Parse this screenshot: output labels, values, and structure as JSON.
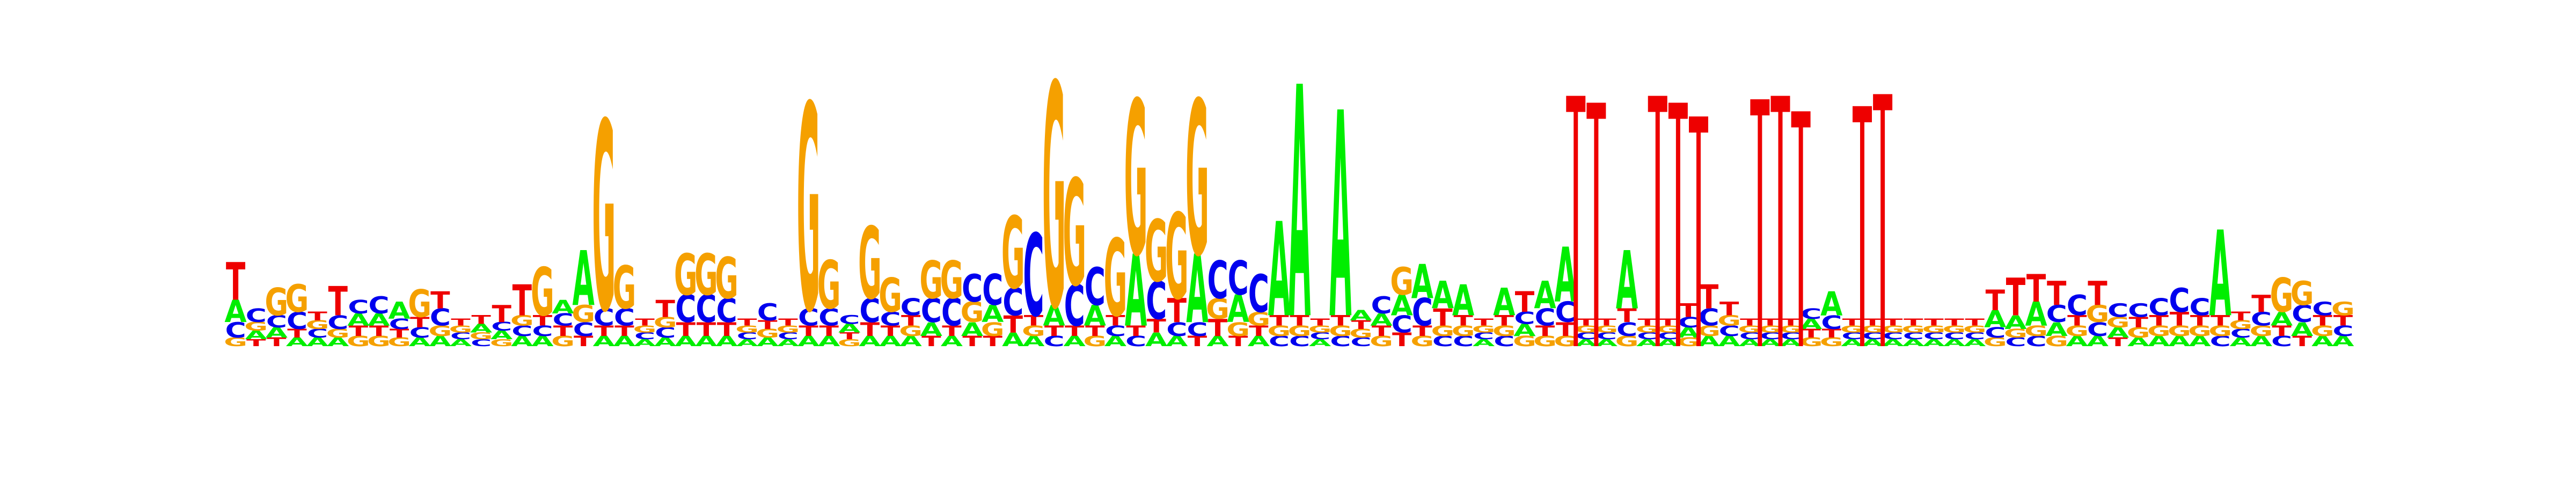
{
  "chart_data": {
    "type": "sequence-logo",
    "alphabet": [
      "A",
      "C",
      "G",
      "T"
    ],
    "colors": {
      "A": "#00ee00",
      "C": "#0000ee",
      "G": "#f5a000",
      "T": "#ee0000"
    },
    "ylim": [
      0,
      2
    ],
    "grid": false,
    "legend": "none",
    "positions": [
      {
        "A": 0.13,
        "C": 0.09,
        "G": 0.05,
        "T": 0.22
      },
      {
        "A": 0.05,
        "C": 0.08,
        "G": 0.05,
        "T": 0.04
      },
      {
        "A": 0.06,
        "C": 0.07,
        "G": 0.16,
        "T": 0.05
      },
      {
        "A": 0.05,
        "C": 0.1,
        "G": 0.16,
        "T": 0.05
      },
      {
        "A": 0.05,
        "C": 0.05,
        "G": 0.05,
        "T": 0.05
      },
      {
        "A": 0.05,
        "C": 0.08,
        "G": 0.05,
        "T": 0.17
      },
      {
        "A": 0.07,
        "C": 0.08,
        "G": 0.06,
        "T": 0.06
      },
      {
        "A": 0.07,
        "C": 0.1,
        "G": 0.06,
        "T": 0.06
      },
      {
        "A": 0.1,
        "C": 0.06,
        "G": 0.05,
        "T": 0.05
      },
      {
        "A": 0.05,
        "C": 0.06,
        "G": 0.16,
        "T": 0.06
      },
      {
        "A": 0.06,
        "C": 0.1,
        "G": 0.06,
        "T": 0.1
      },
      {
        "A": 0.04,
        "C": 0.04,
        "G": 0.04,
        "T": 0.04
      },
      {
        "A": 0.05,
        "C": 0.04,
        "G": 0.04,
        "T": 0.05
      },
      {
        "A": 0.05,
        "C": 0.05,
        "G": 0.04,
        "T": 0.1
      },
      {
        "A": 0.06,
        "C": 0.06,
        "G": 0.06,
        "T": 0.18
      },
      {
        "A": 0.06,
        "C": 0.06,
        "G": 0.28,
        "T": 0.06
      },
      {
        "A": 0.08,
        "C": 0.07,
        "G": 0.06,
        "T": 0.06
      },
      {
        "A": 0.32,
        "C": 0.08,
        "G": 0.1,
        "T": 0.06
      },
      {
        "A": 0.06,
        "C": 0.1,
        "G": 1.1,
        "T": 0.06
      },
      {
        "A": 0.06,
        "C": 0.1,
        "G": 0.25,
        "T": 0.06
      },
      {
        "A": 0.04,
        "C": 0.04,
        "G": 0.04,
        "T": 0.04
      },
      {
        "A": 0.05,
        "C": 0.06,
        "G": 0.06,
        "T": 0.1
      },
      {
        "A": 0.06,
        "C": 0.16,
        "G": 0.24,
        "T": 0.08
      },
      {
        "A": 0.06,
        "C": 0.16,
        "G": 0.24,
        "T": 0.08
      },
      {
        "A": 0.06,
        "C": 0.14,
        "G": 0.24,
        "T": 0.08
      },
      {
        "A": 0.04,
        "C": 0.04,
        "G": 0.04,
        "T": 0.04
      },
      {
        "A": 0.05,
        "C": 0.1,
        "G": 0.05,
        "T": 0.05
      },
      {
        "A": 0.04,
        "C": 0.04,
        "G": 0.04,
        "T": 0.04
      },
      {
        "A": 0.06,
        "C": 0.1,
        "G": 1.2,
        "T": 0.06
      },
      {
        "A": 0.06,
        "C": 0.1,
        "G": 0.28,
        "T": 0.06
      },
      {
        "A": 0.05,
        "C": 0.05,
        "G": 0.04,
        "T": 0.04
      },
      {
        "A": 0.06,
        "C": 0.14,
        "G": 0.42,
        "T": 0.08
      },
      {
        "A": 0.06,
        "C": 0.08,
        "G": 0.2,
        "T": 0.06
      },
      {
        "A": 0.06,
        "C": 0.1,
        "G": 0.06,
        "T": 0.06
      },
      {
        "A": 0.08,
        "C": 0.14,
        "G": 0.22,
        "T": 0.06
      },
      {
        "A": 0.06,
        "C": 0.16,
        "G": 0.22,
        "T": 0.06
      },
      {
        "A": 0.08,
        "C": 0.16,
        "G": 0.12,
        "T": 0.06
      },
      {
        "A": 0.1,
        "C": 0.18,
        "G": 0.08,
        "T": 0.06
      },
      {
        "A": 0.08,
        "C": 0.16,
        "G": 0.42,
        "T": 0.1
      },
      {
        "A": 0.06,
        "C": 0.48,
        "G": 0.06,
        "T": 0.06
      },
      {
        "A": 0.12,
        "C": 0.06,
        "G": 1.3,
        "T": 0.06
      },
      {
        "A": 0.06,
        "C": 0.24,
        "G": 0.62,
        "T": 0.06
      },
      {
        "A": 0.12,
        "C": 0.22,
        "G": 0.06,
        "T": 0.06
      },
      {
        "A": 0.06,
        "C": 0.06,
        "G": 0.45,
        "T": 0.06
      },
      {
        "A": 0.42,
        "C": 0.06,
        "G": 0.9,
        "T": 0.06
      },
      {
        "A": 0.08,
        "C": 0.22,
        "G": 0.36,
        "T": 0.08
      },
      {
        "A": 0.06,
        "C": 0.08,
        "G": 0.5,
        "T": 0.14
      },
      {
        "A": 0.4,
        "C": 0.08,
        "G": 0.9,
        "T": 0.06
      },
      {
        "A": 0.06,
        "C": 0.22,
        "G": 0.12,
        "T": 0.1
      },
      {
        "A": 0.16,
        "C": 0.2,
        "G": 0.08,
        "T": 0.06
      },
      {
        "A": 0.06,
        "C": 0.22,
        "G": 0.08,
        "T": 0.06
      },
      {
        "A": 0.55,
        "C": 0.06,
        "G": 0.06,
        "T": 0.06
      },
      {
        "A": 1.35,
        "C": 0.06,
        "G": 0.06,
        "T": 0.06
      },
      {
        "A": 0.04,
        "C": 0.04,
        "G": 0.04,
        "T": 0.04
      },
      {
        "A": 1.2,
        "C": 0.06,
        "G": 0.06,
        "T": 0.06
      },
      {
        "A": 0.06,
        "C": 0.05,
        "G": 0.05,
        "T": 0.05
      },
      {
        "A": 0.07,
        "C": 0.1,
        "G": 0.06,
        "T": 0.06
      },
      {
        "A": 0.12,
        "C": 0.1,
        "G": 0.16,
        "T": 0.08
      },
      {
        "A": 0.2,
        "C": 0.16,
        "G": 0.06,
        "T": 0.06
      },
      {
        "A": 0.16,
        "C": 0.06,
        "G": 0.06,
        "T": 0.1
      },
      {
        "A": 0.18,
        "C": 0.06,
        "G": 0.06,
        "T": 0.06
      },
      {
        "A": 0.04,
        "C": 0.04,
        "G": 0.04,
        "T": 0.04
      },
      {
        "A": 0.16,
        "C": 0.06,
        "G": 0.06,
        "T": 0.06
      },
      {
        "A": 0.07,
        "C": 0.07,
        "G": 0.06,
        "T": 0.12
      },
      {
        "A": 0.16,
        "C": 0.1,
        "G": 0.06,
        "T": 0.06
      },
      {
        "A": 0.32,
        "C": 0.12,
        "G": 0.06,
        "T": 0.08
      },
      {
        "A": 0.04,
        "C": 0.04,
        "G": 0.04,
        "T": 0.04
      },
      {
        "A": 0.04,
        "C": 0.04,
        "G": 0.04,
        "T": 0.04
      },
      {
        "A": 0.34,
        "C": 0.08,
        "G": 0.06,
        "T": 0.08
      },
      {
        "A": 0.04,
        "C": 0.04,
        "G": 0.04,
        "T": 0.04
      },
      {
        "A": 0.04,
        "C": 0.04,
        "G": 0.04,
        "T": 0.04
      },
      {
        "A": 0.06,
        "C": 0.06,
        "G": 0.05,
        "T": 0.08
      },
      {
        "A": 0.06,
        "C": 0.1,
        "G": 0.06,
        "T": 0.14
      },
      {
        "A": 0.06,
        "C": 0.06,
        "G": 0.06,
        "T": 0.08
      },
      {
        "A": 0.04,
        "C": 0.04,
        "G": 0.04,
        "T": 0.04
      },
      {
        "A": 0.04,
        "C": 0.04,
        "G": 0.04,
        "T": 0.04
      },
      {
        "A": 0.04,
        "C": 0.04,
        "G": 0.04,
        "T": 0.04
      },
      {
        "A": 0.06,
        "C": 0.06,
        "G": 0.05,
        "T": 0.05
      },
      {
        "A": 0.14,
        "C": 0.08,
        "G": 0.05,
        "T": 0.05
      },
      {
        "A": 0.04,
        "C": 0.04,
        "G": 0.04,
        "T": 0.04
      },
      {
        "A": 0.04,
        "C": 0.04,
        "G": 0.04,
        "T": 0.04
      },
      {
        "A": 0.04,
        "C": 0.04,
        "G": 0.04,
        "T": 0.04
      },
      {
        "A": 0.04,
        "C": 0.04,
        "G": 0.04,
        "T": 0.04
      },
      {
        "A": 0.04,
        "C": 0.04,
        "G": 0.04,
        "T": 0.04
      },
      {
        "A": 0.04,
        "C": 0.04,
        "G": 0.04,
        "T": 0.04
      },
      {
        "A": 0.04,
        "C": 0.04,
        "G": 0.04,
        "T": 0.04
      },
      {
        "A": 0.1,
        "C": 0.06,
        "G": 0.05,
        "T": 0.12
      },
      {
        "A": 0.08,
        "C": 0.05,
        "G": 0.05,
        "T": 0.22
      },
      {
        "A": 0.14,
        "C": 0.06,
        "G": 0.06,
        "T": 0.16
      },
      {
        "A": 0.08,
        "C": 0.1,
        "G": 0.06,
        "T": 0.14
      },
      {
        "A": 0.06,
        "C": 0.12,
        "G": 0.06,
        "T": 0.06
      },
      {
        "A": 0.06,
        "C": 0.08,
        "G": 0.1,
        "T": 0.14
      },
      {
        "A": 0.06,
        "C": 0.08,
        "G": 0.06,
        "T": 0.05
      },
      {
        "A": 0.05,
        "C": 0.08,
        "G": 0.06,
        "T": 0.06
      },
      {
        "A": 0.06,
        "C": 0.1,
        "G": 0.06,
        "T": 0.06
      },
      {
        "A": 0.06,
        "C": 0.14,
        "G": 0.06,
        "T": 0.08
      },
      {
        "A": 0.06,
        "C": 0.1,
        "G": 0.06,
        "T": 0.06
      },
      {
        "A": 0.5,
        "C": 0.06,
        "G": 0.06,
        "T": 0.06
      },
      {
        "A": 0.05,
        "C": 0.05,
        "G": 0.05,
        "T": 0.05
      },
      {
        "A": 0.06,
        "C": 0.08,
        "G": 0.06,
        "T": 0.1
      },
      {
        "A": 0.08,
        "C": 0.06,
        "G": 0.2,
        "T": 0.06
      },
      {
        "A": 0.08,
        "C": 0.1,
        "G": 0.14,
        "T": 0.06
      },
      {
        "A": 0.06,
        "C": 0.08,
        "G": 0.06,
        "T": 0.06
      },
      {
        "A": 0.06,
        "C": 0.06,
        "G": 0.08,
        "T": 0.06
      }
    ],
    "barbell_columns": [
      {
        "after_position": 65,
        "height": 1.42
      },
      {
        "after_position": 66,
        "height": 1.38
      },
      {
        "after_position": 69,
        "height": 1.42
      },
      {
        "after_position": 70,
        "height": 1.38
      },
      {
        "after_position": 71,
        "height": 1.3
      },
      {
        "after_position": 74,
        "height": 1.4
      },
      {
        "after_position": 75,
        "height": 1.42
      },
      {
        "after_position": 76,
        "height": 1.33
      },
      {
        "after_position": 79,
        "height": 1.36
      },
      {
        "after_position": 80,
        "height": 1.43
      }
    ]
  }
}
